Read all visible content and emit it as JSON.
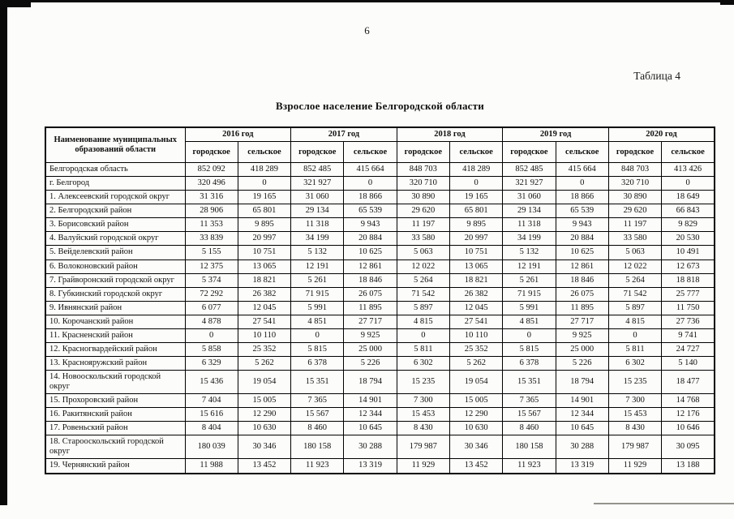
{
  "page": {
    "number": "6",
    "table_caption": "Таблица 4",
    "title": "Взрослое население Белгородской области"
  },
  "table": {
    "name_header": "Наименование муниципальных образований области",
    "years": [
      "2016 год",
      "2017 год",
      "2018 год",
      "2019 год",
      "2020 год"
    ],
    "sub_headers": {
      "urban": "городское",
      "rural": "сельское"
    },
    "rows": [
      {
        "name": "Белгородская область",
        "values": [
          "852 092",
          "418 289",
          "852 485",
          "415 664",
          "848 703",
          "418 289",
          "852 485",
          "415 664",
          "848 703",
          "413 426"
        ]
      },
      {
        "name": "г. Белгород",
        "values": [
          "320 496",
          "0",
          "321 927",
          "0",
          "320 710",
          "0",
          "321 927",
          "0",
          "320 710",
          "0"
        ]
      },
      {
        "name": "1. Алексеевский городской округ",
        "values": [
          "31 316",
          "19 165",
          "31 060",
          "18 866",
          "30 890",
          "19 165",
          "31 060",
          "18 866",
          "30 890",
          "18 649"
        ]
      },
      {
        "name": "2. Белгородский район",
        "values": [
          "28 906",
          "65 801",
          "29 134",
          "65 539",
          "29 620",
          "65 801",
          "29 134",
          "65 539",
          "29 620",
          "66 843"
        ]
      },
      {
        "name": "3. Борисовский район",
        "values": [
          "11 353",
          "9 895",
          "11 318",
          "9 943",
          "11 197",
          "9 895",
          "11 318",
          "9 943",
          "11 197",
          "9 829"
        ]
      },
      {
        "name": "4. Валуйский городской округ",
        "values": [
          "33 839",
          "20 997",
          "34 199",
          "20 884",
          "33 580",
          "20 997",
          "34 199",
          "20 884",
          "33 580",
          "20 530"
        ]
      },
      {
        "name": "5. Вейделевский район",
        "values": [
          "5 155",
          "10 751",
          "5 132",
          "10 625",
          "5 063",
          "10 751",
          "5 132",
          "10 625",
          "5 063",
          "10 491"
        ]
      },
      {
        "name": "6. Волоконовский район",
        "values": [
          "12 375",
          "13 065",
          "12 191",
          "12 861",
          "12 022",
          "13 065",
          "12 191",
          "12 861",
          "12 022",
          "12 673"
        ]
      },
      {
        "name": "7. Грайворонский городской округ",
        "values": [
          "5 374",
          "18 821",
          "5 261",
          "18 846",
          "5 264",
          "18 821",
          "5 261",
          "18 846",
          "5 264",
          "18 818"
        ]
      },
      {
        "name": "8. Губкинский городской округ",
        "values": [
          "72 292",
          "26 382",
          "71 915",
          "26 075",
          "71 542",
          "26 382",
          "71 915",
          "26 075",
          "71 542",
          "25 777"
        ]
      },
      {
        "name": "9. Ивнянский район",
        "values": [
          "6 077",
          "12 045",
          "5 991",
          "11 895",
          "5 897",
          "12 045",
          "5 991",
          "11 895",
          "5 897",
          "11 750"
        ]
      },
      {
        "name": "10. Корочанский район",
        "values": [
          "4 878",
          "27 541",
          "4 851",
          "27 717",
          "4 815",
          "27 541",
          "4 851",
          "27 717",
          "4 815",
          "27 736"
        ]
      },
      {
        "name": "11. Красненский район",
        "values": [
          "0",
          "10 110",
          "0",
          "9 925",
          "0",
          "10 110",
          "0",
          "9 925",
          "0",
          "9 741"
        ]
      },
      {
        "name": "12. Красногвардейский район",
        "values": [
          "5 858",
          "25 352",
          "5 815",
          "25 000",
          "5 811",
          "25 352",
          "5 815",
          "25 000",
          "5 811",
          "24 727"
        ]
      },
      {
        "name": "13. Краснояружский район",
        "values": [
          "6 329",
          "5 262",
          "6 378",
          "5 226",
          "6 302",
          "5 262",
          "6 378",
          "5 226",
          "6 302",
          "5 140"
        ]
      },
      {
        "name": "14. Новооскольский городской округ",
        "values": [
          "15 436",
          "19 054",
          "15 351",
          "18 794",
          "15 235",
          "19 054",
          "15 351",
          "18 794",
          "15 235",
          "18 477"
        ]
      },
      {
        "name": "15. Прохоровский район",
        "values": [
          "7 404",
          "15 005",
          "7 365",
          "14 901",
          "7 300",
          "15 005",
          "7 365",
          "14 901",
          "7 300",
          "14 768"
        ]
      },
      {
        "name": "16. Ракитянский район",
        "values": [
          "15 616",
          "12 290",
          "15 567",
          "12 344",
          "15 453",
          "12 290",
          "15 567",
          "12 344",
          "15 453",
          "12 176"
        ]
      },
      {
        "name": "17. Ровеньский район",
        "values": [
          "8 404",
          "10 630",
          "8 460",
          "10 645",
          "8 430",
          "10 630",
          "8 460",
          "10 645",
          "8 430",
          "10 646"
        ]
      },
      {
        "name": "18. Старооскольский городской округ",
        "values": [
          "180 039",
          "30 346",
          "180 158",
          "30 288",
          "179 987",
          "30 346",
          "180 158",
          "30 288",
          "179 987",
          "30 095"
        ]
      },
      {
        "name": "19. Чернянский район",
        "values": [
          "11 988",
          "13 452",
          "11 923",
          "13 319",
          "11 929",
          "13 452",
          "11 923",
          "13 319",
          "11 929",
          "13 188"
        ]
      }
    ]
  }
}
